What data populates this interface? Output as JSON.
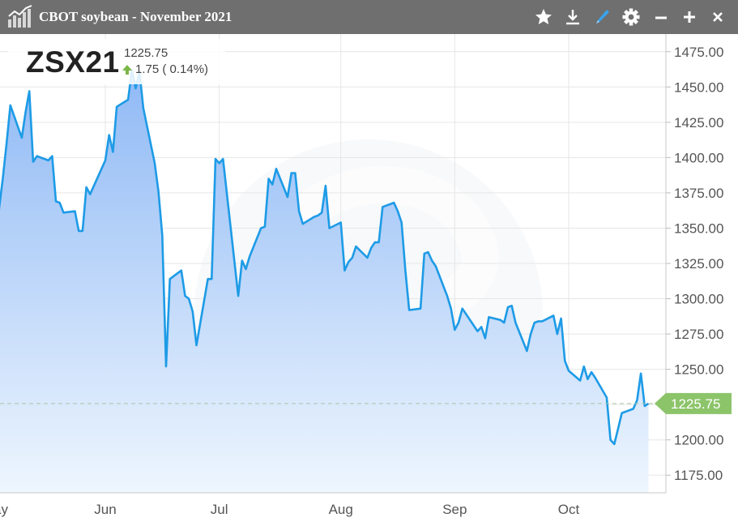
{
  "window": {
    "title": "CBOT soybean - November 2021",
    "buttons": [
      "star-icon",
      "download-icon",
      "pen-icon",
      "gear-icon",
      "minimize-icon",
      "add-icon",
      "close-icon"
    ]
  },
  "quote": {
    "symbol": "ZSX21",
    "last": "1225.75",
    "change": "1.75 ( 0.14%)",
    "direction": "up"
  },
  "colors": {
    "titlebar": "#6f6f6f",
    "line": "#1d9be6",
    "area_top": "#8fb9f5",
    "area_bottom": "#eef6fe",
    "last_price_tag": "#8cc46a",
    "up_arrow": "#7ab648"
  },
  "chart_data": {
    "type": "area",
    "ylim": [
      1162.5,
      1487.5
    ],
    "y_ticks": [
      "1175.00",
      "1200.00",
      "1225.00",
      "1250.00",
      "1275.00",
      "1300.00",
      "1325.00",
      "1350.00",
      "1375.00",
      "1400.00",
      "1425.00",
      "1450.00",
      "1475.00"
    ],
    "x_tick_labels": [
      "ay",
      "Jun",
      "Jul",
      "Aug",
      "Sep",
      "Oct"
    ],
    "last_price": 1225.75,
    "last_price_label": "1225.75",
    "grid": true,
    "x": [
      "2021-05-03",
      "2021-05-04",
      "2021-05-05",
      "2021-05-06",
      "2021-05-07",
      "2021-05-10",
      "2021-05-11",
      "2021-05-12",
      "2021-05-13",
      "2021-05-14",
      "2021-05-17",
      "2021-05-18",
      "2021-05-19",
      "2021-05-20",
      "2021-05-21",
      "2021-05-24",
      "2021-05-25",
      "2021-05-26",
      "2021-05-27",
      "2021-05-28",
      "2021-06-01",
      "2021-06-02",
      "2021-06-03",
      "2021-06-04",
      "2021-06-07",
      "2021-06-08",
      "2021-06-09",
      "2021-06-10",
      "2021-06-11",
      "2021-06-14",
      "2021-06-15",
      "2021-06-16",
      "2021-06-17",
      "2021-06-18",
      "2021-06-21",
      "2021-06-22",
      "2021-06-23",
      "2021-06-24",
      "2021-06-25",
      "2021-06-28",
      "2021-06-29",
      "2021-06-30",
      "2021-07-01",
      "2021-07-02",
      "2021-07-06",
      "2021-07-07",
      "2021-07-08",
      "2021-07-09",
      "2021-07-12",
      "2021-07-13",
      "2021-07-14",
      "2021-07-15",
      "2021-07-16",
      "2021-07-19",
      "2021-07-20",
      "2021-07-21",
      "2021-07-22",
      "2021-07-23",
      "2021-07-26",
      "2021-07-27",
      "2021-07-28",
      "2021-07-29",
      "2021-07-30",
      "2021-08-02",
      "2021-08-03",
      "2021-08-04",
      "2021-08-05",
      "2021-08-06",
      "2021-08-09",
      "2021-08-10",
      "2021-08-11",
      "2021-08-12",
      "2021-08-13",
      "2021-08-16",
      "2021-08-17",
      "2021-08-18",
      "2021-08-19",
      "2021-08-20",
      "2021-08-23",
      "2021-08-24",
      "2021-08-25",
      "2021-08-26",
      "2021-08-27",
      "2021-08-30",
      "2021-08-31",
      "2021-09-01",
      "2021-09-02",
      "2021-09-03",
      "2021-09-07",
      "2021-09-08",
      "2021-09-09",
      "2021-09-10",
      "2021-09-13",
      "2021-09-14",
      "2021-09-15",
      "2021-09-16",
      "2021-09-17",
      "2021-09-20",
      "2021-09-21",
      "2021-09-22",
      "2021-09-23",
      "2021-09-24",
      "2021-09-27",
      "2021-09-28",
      "2021-09-29",
      "2021-09-30",
      "2021-10-01",
      "2021-10-04",
      "2021-10-05",
      "2021-10-06",
      "2021-10-07",
      "2021-10-08",
      "2021-10-11",
      "2021-10-12",
      "2021-10-13",
      "2021-10-14",
      "2021-10-15",
      "2021-10-18",
      "2021-10-19",
      "2021-10-20",
      "2021-10-21",
      "2021-10-22"
    ],
    "values": [
      1347,
      1363,
      1385,
      1410,
      1437,
      1414,
      1432,
      1447,
      1397,
      1401,
      1398,
      1401,
      1369,
      1368,
      1361,
      1362,
      1348,
      1348,
      1379,
      1374,
      1398,
      1416,
      1404,
      1436,
      1441,
      1462,
      1449,
      1461,
      1435,
      1396,
      1376,
      1345,
      1252,
      1314,
      1320,
      1302,
      1300,
      1291,
      1267,
      1314,
      1314,
      1399,
      1396,
      1399,
      1302,
      1327,
      1321,
      1330,
      1350,
      1351,
      1385,
      1381,
      1392,
      1372,
      1389,
      1389,
      1362,
      1353,
      1358,
      1359,
      1361,
      1380,
      1350,
      1354,
      1320,
      1326,
      1329,
      1337,
      1329,
      1336,
      1340,
      1340,
      1365,
      1368,
      1362,
      1354,
      1320,
      1292,
      1293,
      1332,
      1333,
      1327,
      1323,
      1302,
      1293,
      1278,
      1283,
      1293,
      1277,
      1280,
      1272,
      1287,
      1285,
      1283,
      1294,
      1295,
      1283,
      1263,
      1275,
      1283,
      1284,
      1284,
      1288,
      1275,
      1286,
      1256,
      1249,
      1242,
      1252,
      1243,
      1248,
      1244,
      1230,
      1200,
      1197,
      1208,
      1219,
      1222,
      1228,
      1247,
      1224,
      1225.75
    ]
  }
}
